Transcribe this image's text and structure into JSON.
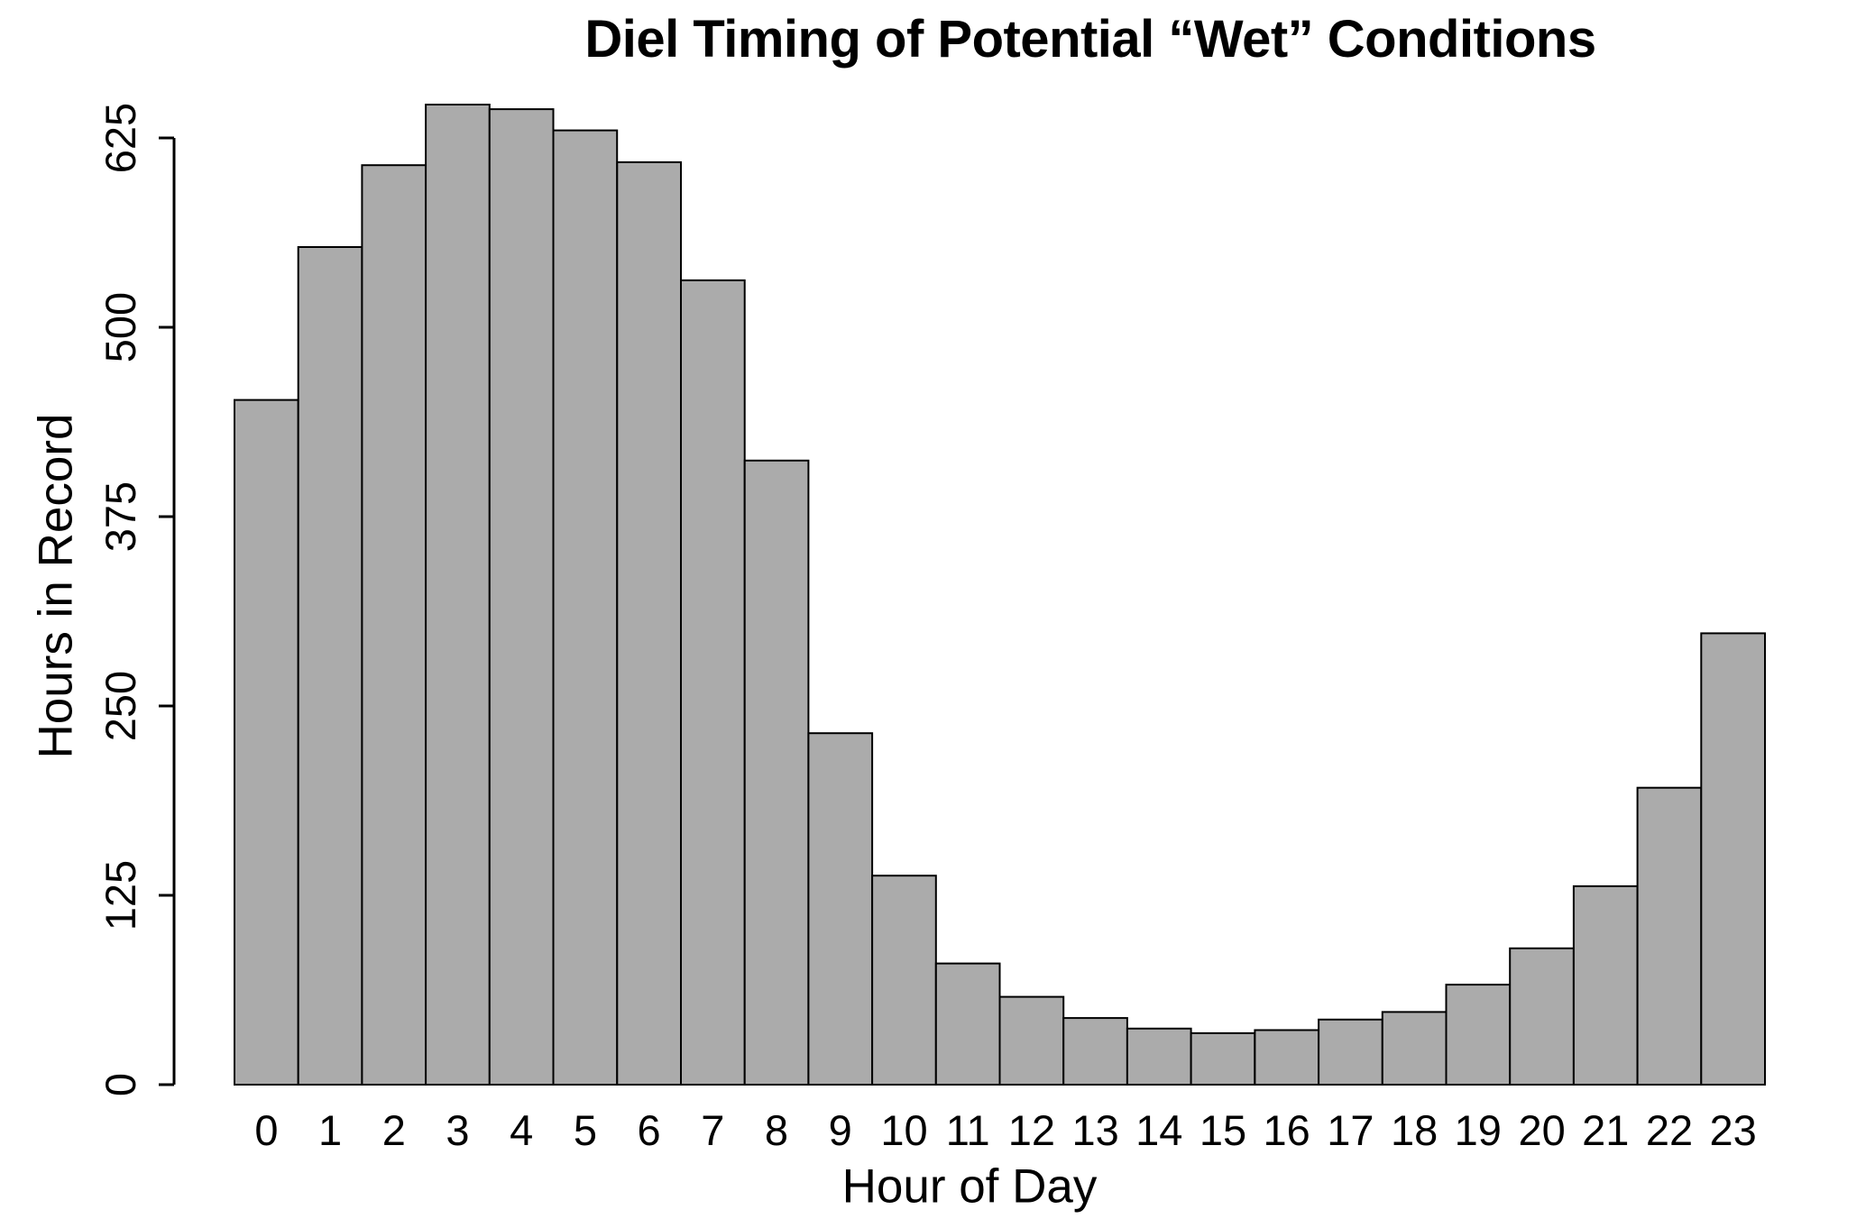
{
  "title": "Diel Timing of Potential “Wet” Conditions",
  "chart_data": {
    "type": "bar",
    "title": "Diel Timing of Potential “Wet” Conditions",
    "xlabel": "Hour of Day",
    "ylabel": "Hours in Record",
    "categories": [
      "0",
      "1",
      "2",
      "3",
      "4",
      "5",
      "6",
      "7",
      "8",
      "9",
      "10",
      "11",
      "12",
      "13",
      "14",
      "15",
      "16",
      "17",
      "18",
      "19",
      "20",
      "21",
      "22",
      "23"
    ],
    "values": [
      452,
      553,
      607,
      647,
      644,
      630,
      609,
      531,
      412,
      232,
      138,
      80,
      58,
      44,
      37,
      34,
      36,
      43,
      48,
      66,
      90,
      131,
      196,
      298
    ],
    "yticks": [
      0,
      125,
      250,
      375,
      500,
      625
    ],
    "ylim": [
      0,
      660
    ],
    "grid": false,
    "legend": false,
    "bar_fill": "#ababab",
    "bar_stroke": "#000000",
    "axis_color": "#000000",
    "text_color": "#000000"
  }
}
